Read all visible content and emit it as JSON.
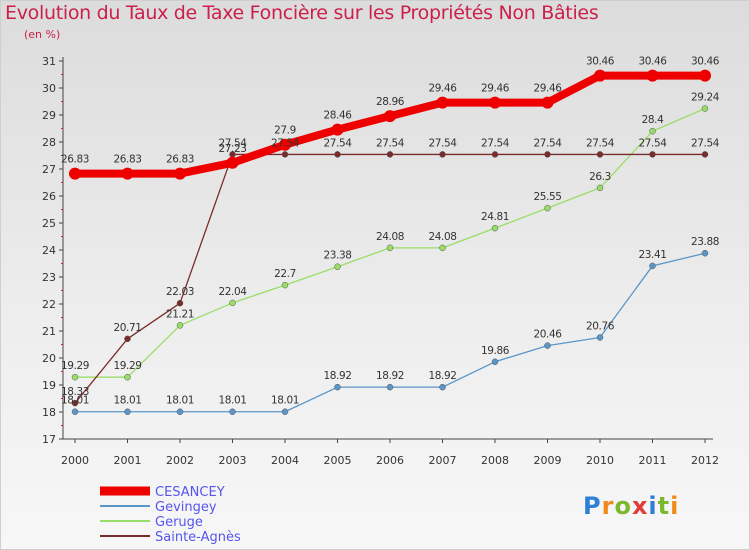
{
  "title": "Evolution du Taux de Taxe Foncière sur les Propriétés Non Bâties",
  "unit": "(en %)",
  "logo": "Proxiti",
  "chart_data": {
    "type": "line",
    "title": "Evolution du Taux de Taxe Foncière sur les Propriétés Non Bâties",
    "ylabel": "(en %)",
    "xlabel": "",
    "ylim": [
      17,
      31
    ],
    "yticks": [
      17,
      18,
      19,
      20,
      21,
      22,
      23,
      24,
      25,
      26,
      27,
      28,
      29,
      30,
      31
    ],
    "x": [
      "2000",
      "2001",
      "2002",
      "2003",
      "2004",
      "2005",
      "2006",
      "2007",
      "2008",
      "2009",
      "2010",
      "2011",
      "2012"
    ],
    "legend_position": "bottom-left",
    "series": [
      {
        "name": "CESANCEY",
        "color": "#ee0000",
        "values": [
          26.83,
          26.83,
          26.83,
          27.23,
          27.9,
          28.46,
          28.96,
          29.46,
          29.46,
          29.46,
          30.46,
          30.46,
          30.46
        ],
        "labels": [
          "26.83",
          "26.83",
          "26.83",
          "27.23",
          "27.9",
          "28.46",
          "28.96",
          "29.46",
          "29.46",
          "29.46",
          "30.46",
          "30.46",
          "30.46"
        ]
      },
      {
        "name": "Gevingey",
        "color": "#5b96c8",
        "values": [
          18.01,
          18.01,
          18.01,
          18.01,
          18.01,
          18.92,
          18.92,
          18.92,
          19.86,
          20.46,
          20.76,
          23.41,
          23.88
        ],
        "labels": [
          "18.01",
          "18.01",
          "18.01",
          "18.01",
          "18.01",
          "18.92",
          "18.92",
          "18.92",
          "19.86",
          "20.46",
          "20.76",
          "23.41",
          "23.88"
        ]
      },
      {
        "name": "Geruge",
        "color": "#99dd66",
        "values": [
          19.29,
          19.29,
          21.21,
          22.04,
          22.7,
          23.38,
          24.08,
          24.08,
          24.81,
          25.55,
          26.3,
          28.4,
          29.24
        ],
        "labels": [
          "19.29",
          "19.29",
          "21.21",
          "22.04",
          "22.7",
          "23.38",
          "24.08",
          "24.08",
          "24.81",
          "25.55",
          "26.3",
          "28.4",
          "29.24"
        ]
      },
      {
        "name": "Sainte-Agnès",
        "color": "#7a2c2c",
        "values": [
          18.33,
          20.71,
          22.03,
          27.54,
          27.54,
          27.54,
          27.54,
          27.54,
          27.54,
          27.54,
          27.54,
          27.54,
          27.54
        ],
        "labels": [
          "18.33",
          "20.71",
          "22.03",
          "27.54",
          "27.54",
          "27.54",
          "27.54",
          "27.54",
          "27.54",
          "27.54",
          "27.54",
          "27.54",
          "27.54"
        ]
      }
    ]
  }
}
